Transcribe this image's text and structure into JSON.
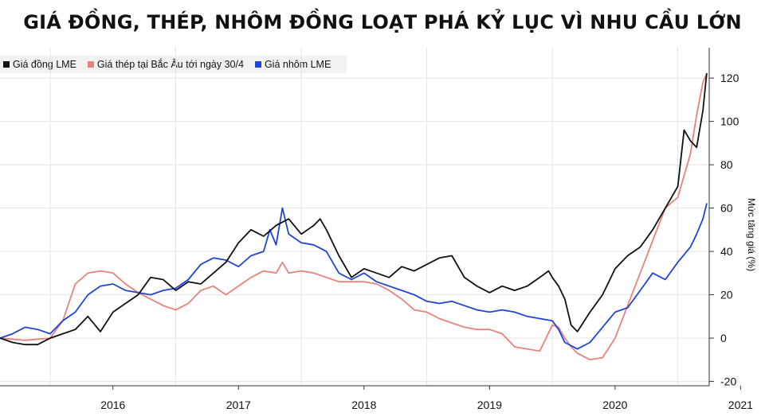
{
  "chart_data": {
    "type": "line",
    "title": "GIÁ ĐỒNG, THÉP, NHÔM ĐỒNG LOẠT PHÁ KỶ LỤC VÌ NHU CẦU LỚN",
    "ylabel": "Mức tăng giá (%)",
    "xlabel": "",
    "x_ticks": [
      "2016",
      "2017",
      "2018",
      "2019",
      "2020",
      "2021"
    ],
    "y_ticks": [
      -20,
      0,
      20,
      40,
      60,
      80,
      100,
      120
    ],
    "xlim": [
      2015.6,
      2021.25
    ],
    "ylim": [
      -22,
      134
    ],
    "grid": true,
    "legend_position": "top-left",
    "series": [
      {
        "name": "Giá đồng LME",
        "color": "#111111",
        "points": [
          [
            2015.6,
            0
          ],
          [
            2015.7,
            -2
          ],
          [
            2015.8,
            -3
          ],
          [
            2015.9,
            -3
          ],
          [
            2016.0,
            0
          ],
          [
            2016.1,
            2
          ],
          [
            2016.2,
            4
          ],
          [
            2016.3,
            10
          ],
          [
            2016.4,
            3
          ],
          [
            2016.5,
            12
          ],
          [
            2016.6,
            16
          ],
          [
            2016.7,
            20
          ],
          [
            2016.8,
            28
          ],
          [
            2016.9,
            27
          ],
          [
            2017.0,
            22
          ],
          [
            2017.1,
            26
          ],
          [
            2017.2,
            25
          ],
          [
            2017.3,
            30
          ],
          [
            2017.4,
            35
          ],
          [
            2017.5,
            44
          ],
          [
            2017.6,
            50
          ],
          [
            2017.7,
            47
          ],
          [
            2017.8,
            52
          ],
          [
            2017.9,
            55
          ],
          [
            2018.0,
            48
          ],
          [
            2018.1,
            52
          ],
          [
            2018.15,
            55
          ],
          [
            2018.2,
            50
          ],
          [
            2018.3,
            38
          ],
          [
            2018.4,
            28
          ],
          [
            2018.5,
            32
          ],
          [
            2018.6,
            30
          ],
          [
            2018.7,
            28
          ],
          [
            2018.8,
            33
          ],
          [
            2018.9,
            31
          ],
          [
            2019.0,
            34
          ],
          [
            2019.1,
            37
          ],
          [
            2019.2,
            38
          ],
          [
            2019.3,
            28
          ],
          [
            2019.4,
            24
          ],
          [
            2019.5,
            21
          ],
          [
            2019.6,
            24
          ],
          [
            2019.7,
            22
          ],
          [
            2019.8,
            24
          ],
          [
            2019.9,
            28
          ],
          [
            2019.97,
            31
          ],
          [
            2020.0,
            28
          ],
          [
            2020.05,
            24
          ],
          [
            2020.1,
            18
          ],
          [
            2020.15,
            6
          ],
          [
            2020.2,
            3
          ],
          [
            2020.3,
            12
          ],
          [
            2020.4,
            20
          ],
          [
            2020.5,
            32
          ],
          [
            2020.6,
            38
          ],
          [
            2020.7,
            42
          ],
          [
            2020.8,
            50
          ],
          [
            2020.9,
            60
          ],
          [
            2021.0,
            70
          ],
          [
            2021.05,
            96
          ],
          [
            2021.1,
            91
          ],
          [
            2021.15,
            88
          ],
          [
            2021.2,
            105
          ],
          [
            2021.23,
            122
          ]
        ]
      },
      {
        "name": "Giá thép tại Bắc Âu tới ngày 30/4",
        "color": "#e8827a",
        "points": [
          [
            2015.6,
            0
          ],
          [
            2015.8,
            -1
          ],
          [
            2016.0,
            0
          ],
          [
            2016.1,
            8
          ],
          [
            2016.2,
            25
          ],
          [
            2016.3,
            30
          ],
          [
            2016.4,
            31
          ],
          [
            2016.5,
            30
          ],
          [
            2016.6,
            25
          ],
          [
            2016.7,
            21
          ],
          [
            2016.9,
            15
          ],
          [
            2017.0,
            13
          ],
          [
            2017.1,
            16
          ],
          [
            2017.2,
            22
          ],
          [
            2017.3,
            24
          ],
          [
            2017.4,
            20
          ],
          [
            2017.6,
            28
          ],
          [
            2017.7,
            31
          ],
          [
            2017.8,
            30
          ],
          [
            2017.85,
            35
          ],
          [
            2017.9,
            30
          ],
          [
            2018.0,
            31
          ],
          [
            2018.1,
            30
          ],
          [
            2018.2,
            28
          ],
          [
            2018.3,
            26
          ],
          [
            2018.5,
            26
          ],
          [
            2018.6,
            25
          ],
          [
            2018.7,
            22
          ],
          [
            2018.8,
            18
          ],
          [
            2018.9,
            13
          ],
          [
            2019.0,
            12
          ],
          [
            2019.1,
            9
          ],
          [
            2019.2,
            7
          ],
          [
            2019.3,
            5
          ],
          [
            2019.4,
            4
          ],
          [
            2019.5,
            4
          ],
          [
            2019.6,
            2
          ],
          [
            2019.7,
            -4
          ],
          [
            2019.8,
            -5
          ],
          [
            2019.9,
            -6
          ],
          [
            2019.95,
            0
          ],
          [
            2020.0,
            6
          ],
          [
            2020.05,
            5
          ],
          [
            2020.1,
            0
          ],
          [
            2020.15,
            -4
          ],
          [
            2020.2,
            -7
          ],
          [
            2020.3,
            -10
          ],
          [
            2020.4,
            -9
          ],
          [
            2020.5,
            0
          ],
          [
            2020.6,
            15
          ],
          [
            2020.7,
            30
          ],
          [
            2020.8,
            45
          ],
          [
            2020.9,
            60
          ],
          [
            2021.0,
            65
          ],
          [
            2021.1,
            85
          ],
          [
            2021.15,
            103
          ],
          [
            2021.2,
            118
          ],
          [
            2021.23,
            122
          ]
        ]
      },
      {
        "name": "Giá nhôm LME",
        "color": "#1f45d8",
        "points": [
          [
            2015.6,
            0
          ],
          [
            2015.7,
            2
          ],
          [
            2015.8,
            5
          ],
          [
            2015.9,
            4
          ],
          [
            2016.0,
            2
          ],
          [
            2016.1,
            8
          ],
          [
            2016.2,
            12
          ],
          [
            2016.3,
            20
          ],
          [
            2016.4,
            24
          ],
          [
            2016.5,
            25
          ],
          [
            2016.6,
            22
          ],
          [
            2016.7,
            21
          ],
          [
            2016.8,
            20
          ],
          [
            2016.9,
            22
          ],
          [
            2017.0,
            23
          ],
          [
            2017.1,
            27
          ],
          [
            2017.2,
            34
          ],
          [
            2017.3,
            37
          ],
          [
            2017.4,
            36
          ],
          [
            2017.5,
            33
          ],
          [
            2017.6,
            38
          ],
          [
            2017.7,
            40
          ],
          [
            2017.75,
            50
          ],
          [
            2017.8,
            43
          ],
          [
            2017.85,
            60
          ],
          [
            2017.9,
            48
          ],
          [
            2018.0,
            44
          ],
          [
            2018.1,
            43
          ],
          [
            2018.2,
            40
          ],
          [
            2018.25,
            35
          ],
          [
            2018.3,
            30
          ],
          [
            2018.4,
            27
          ],
          [
            2018.5,
            30
          ],
          [
            2018.6,
            26
          ],
          [
            2018.7,
            24
          ],
          [
            2018.8,
            22
          ],
          [
            2018.9,
            20
          ],
          [
            2019.0,
            17
          ],
          [
            2019.1,
            16
          ],
          [
            2019.2,
            17
          ],
          [
            2019.3,
            15
          ],
          [
            2019.4,
            13
          ],
          [
            2019.5,
            12
          ],
          [
            2019.6,
            13
          ],
          [
            2019.7,
            12
          ],
          [
            2019.8,
            10
          ],
          [
            2019.9,
            9
          ],
          [
            2020.0,
            8
          ],
          [
            2020.05,
            4
          ],
          [
            2020.1,
            -2
          ],
          [
            2020.2,
            -5
          ],
          [
            2020.3,
            -2
          ],
          [
            2020.4,
            5
          ],
          [
            2020.5,
            12
          ],
          [
            2020.6,
            14
          ],
          [
            2020.7,
            22
          ],
          [
            2020.8,
            30
          ],
          [
            2020.9,
            27
          ],
          [
            2021.0,
            35
          ],
          [
            2021.1,
            42
          ],
          [
            2021.15,
            48
          ],
          [
            2021.2,
            55
          ],
          [
            2021.23,
            62
          ]
        ]
      }
    ]
  }
}
